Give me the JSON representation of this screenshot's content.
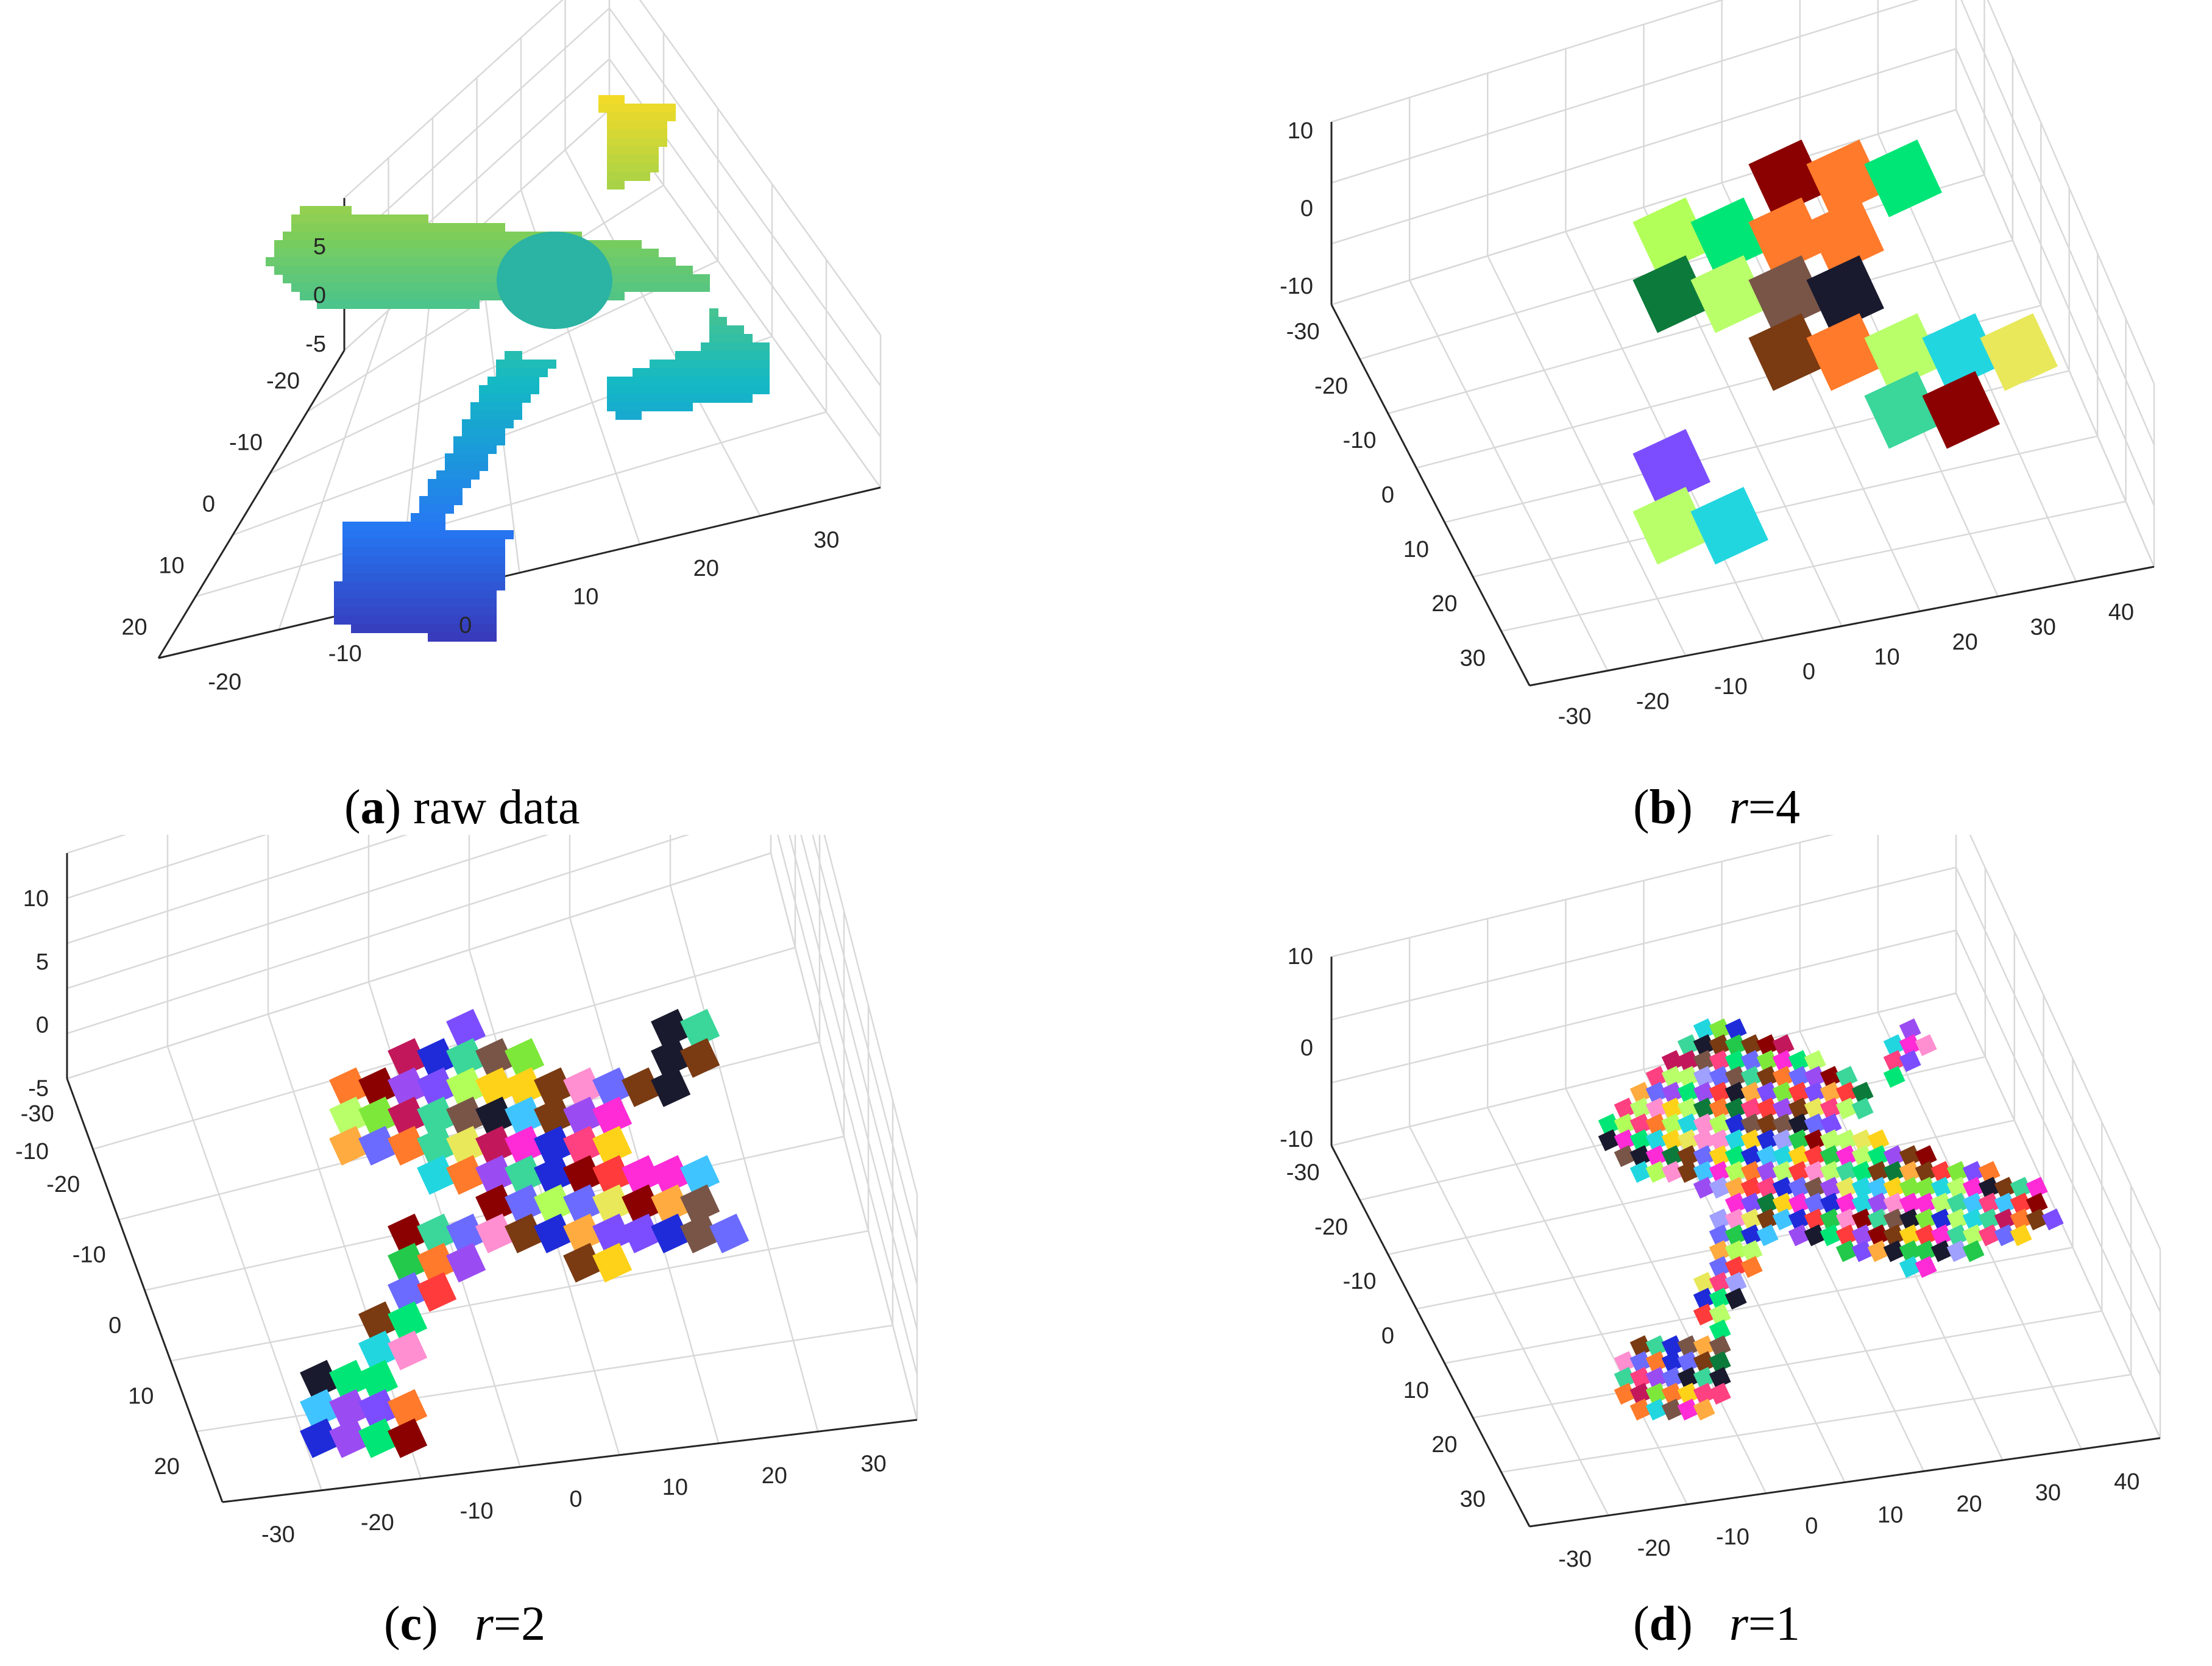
{
  "figure": {
    "panels": [
      {
        "id": "a",
        "letter": "a",
        "caption_text": "raw data",
        "caption_symbol": "",
        "caption_value": "",
        "z_ticks": [
          "5",
          "0",
          "-5"
        ],
        "left_ticks": [
          "-20",
          "-10",
          "0",
          "10",
          "20"
        ],
        "right_ticks": [
          "-20",
          "-10",
          "0",
          "10",
          "20",
          "30"
        ],
        "coloring": "height-gradient"
      },
      {
        "id": "b",
        "letter": "b",
        "caption_text": "",
        "caption_symbol": "r",
        "caption_value": "4",
        "z_ticks": [
          "10",
          "0",
          "-10"
        ],
        "left_ticks": [
          "-30",
          "-20",
          "-10",
          "0",
          "10",
          "20",
          "30"
        ],
        "right_ticks": [
          "-30",
          "-20",
          "-10",
          "0",
          "10",
          "20",
          "30",
          "40"
        ],
        "coloring": "segmented"
      },
      {
        "id": "c",
        "letter": "c",
        "caption_text": "",
        "caption_symbol": "r",
        "caption_value": "2",
        "z_ticks": [
          "10",
          "5",
          "0",
          "-5",
          "-10"
        ],
        "left_ticks": [
          "-30",
          "-20",
          "-10",
          "0",
          "10",
          "20"
        ],
        "right_ticks": [
          "-30",
          "-20",
          "-10",
          "0",
          "10",
          "20",
          "30"
        ],
        "coloring": "segmented"
      },
      {
        "id": "d",
        "letter": "d",
        "caption_text": "",
        "caption_symbol": "r",
        "caption_value": "1",
        "z_ticks": [
          "10",
          "0",
          "-10"
        ],
        "left_ticks": [
          "-30",
          "-20",
          "-10",
          "0",
          "10",
          "20",
          "30"
        ],
        "right_ticks": [
          "-30",
          "-20",
          "-10",
          "0",
          "10",
          "20",
          "30",
          "40"
        ],
        "coloring": "segmented"
      }
    ]
  },
  "chart_data": [
    {
      "type": "scatter",
      "title": "",
      "projection": "3d",
      "axes": {
        "z_ticks": [
          5,
          0,
          -5
        ],
        "x_ticks": [
          -20,
          -10,
          0,
          10,
          20
        ],
        "y_ticks": [
          -20,
          -10,
          0,
          10,
          20,
          30
        ]
      },
      "grid": true,
      "coloring": "height-gradient"
    },
    {
      "type": "scatter",
      "title": "",
      "projection": "3d",
      "axes": {
        "z_ticks": [
          10,
          0,
          -10
        ],
        "x_ticks": [
          -30,
          -20,
          -10,
          0,
          10,
          20,
          30
        ],
        "y_ticks": [
          -30,
          -20,
          -10,
          0,
          10,
          20,
          30,
          40
        ]
      },
      "grid": true,
      "coloring": "segmented",
      "r": 4
    },
    {
      "type": "scatter",
      "title": "",
      "projection": "3d",
      "axes": {
        "z_ticks": [
          10,
          5,
          0,
          -5,
          -10
        ],
        "x_ticks": [
          -30,
          -20,
          -10,
          0,
          10,
          20
        ],
        "y_ticks": [
          -30,
          -20,
          -10,
          0,
          10,
          20,
          30
        ]
      },
      "grid": true,
      "coloring": "segmented",
      "r": 2
    },
    {
      "type": "scatter",
      "title": "",
      "projection": "3d",
      "axes": {
        "z_ticks": [
          10,
          0,
          -10
        ],
        "x_ticks": [
          -30,
          -20,
          -10,
          0,
          10,
          20,
          30
        ],
        "y_ticks": [
          -30,
          -20,
          -10,
          0,
          10,
          20,
          30,
          40
        ]
      },
      "grid": true,
      "coloring": "segmented",
      "r": 1
    }
  ]
}
